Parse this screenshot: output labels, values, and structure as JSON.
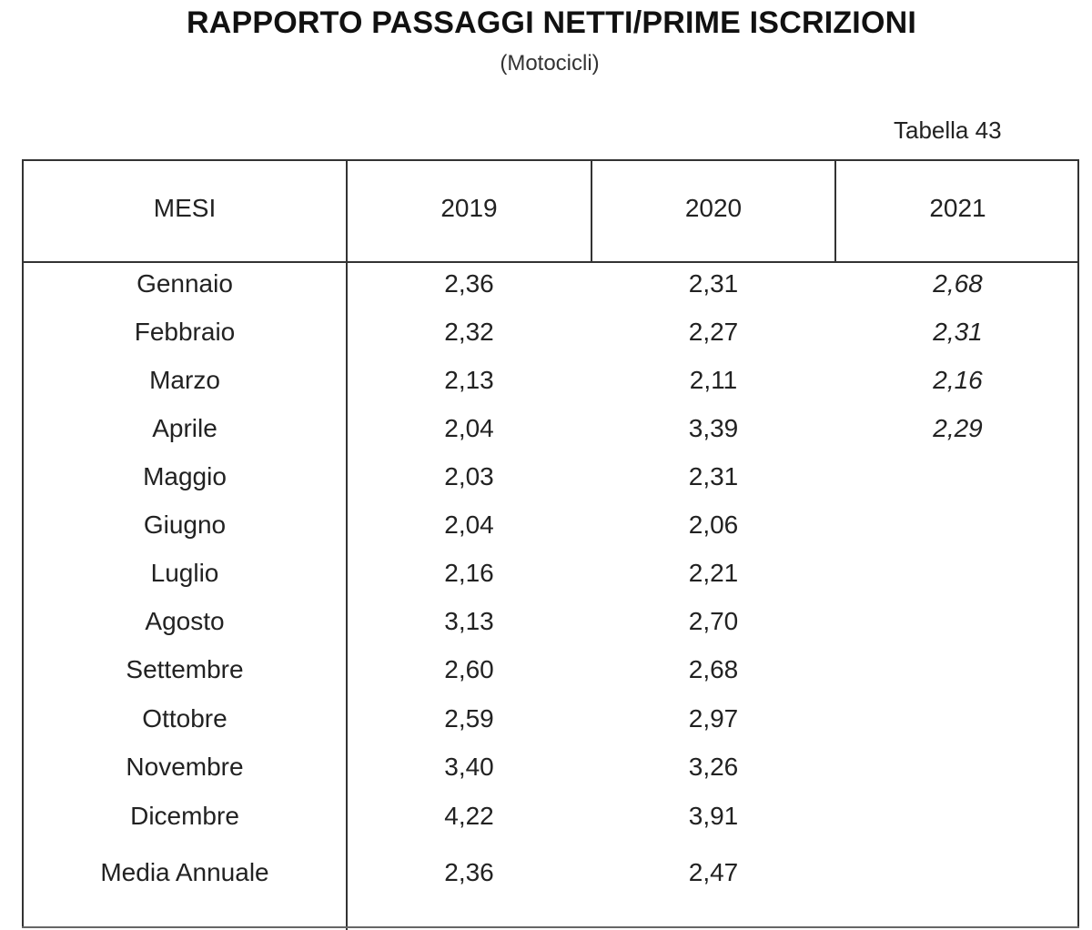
{
  "title": "RAPPORTO PASSAGGI NETTI/PRIME ISCRIZIONI",
  "subtitle": "(Motocicli)",
  "table_ref": "Tabella 43",
  "table": {
    "headers": [
      "MESI",
      "2019",
      "2020",
      "2021"
    ],
    "rows": [
      {
        "mese": "Gennaio",
        "y2019": "2,36",
        "y2020": "2,31",
        "y2021": "2,68"
      },
      {
        "mese": "Febbraio",
        "y2019": "2,32",
        "y2020": "2,27",
        "y2021": "2,31"
      },
      {
        "mese": "Marzo",
        "y2019": "2,13",
        "y2020": "2,11",
        "y2021": "2,16"
      },
      {
        "mese": "Aprile",
        "y2019": "2,04",
        "y2020": "3,39",
        "y2021": "2,29"
      },
      {
        "mese": "Maggio",
        "y2019": "2,03",
        "y2020": "2,31",
        "y2021": ""
      },
      {
        "mese": "Giugno",
        "y2019": "2,04",
        "y2020": "2,06",
        "y2021": ""
      },
      {
        "mese": "Luglio",
        "y2019": "2,16",
        "y2020": "2,21",
        "y2021": ""
      },
      {
        "mese": "Agosto",
        "y2019": "3,13",
        "y2020": "2,70",
        "y2021": ""
      },
      {
        "mese": "Settembre",
        "y2019": "2,60",
        "y2020": "2,68",
        "y2021": ""
      },
      {
        "mese": "Ottobre",
        "y2019": "2,59",
        "y2020": "2,97",
        "y2021": ""
      },
      {
        "mese": "Novembre",
        "y2019": "3,40",
        "y2020": "3,26",
        "y2021": ""
      },
      {
        "mese": "Dicembre",
        "y2019": "4,22",
        "y2020": "3,91",
        "y2021": ""
      },
      {
        "mese": "Media Annuale",
        "y2019": "2,36",
        "y2020": "2,47",
        "y2021": ""
      }
    ]
  }
}
